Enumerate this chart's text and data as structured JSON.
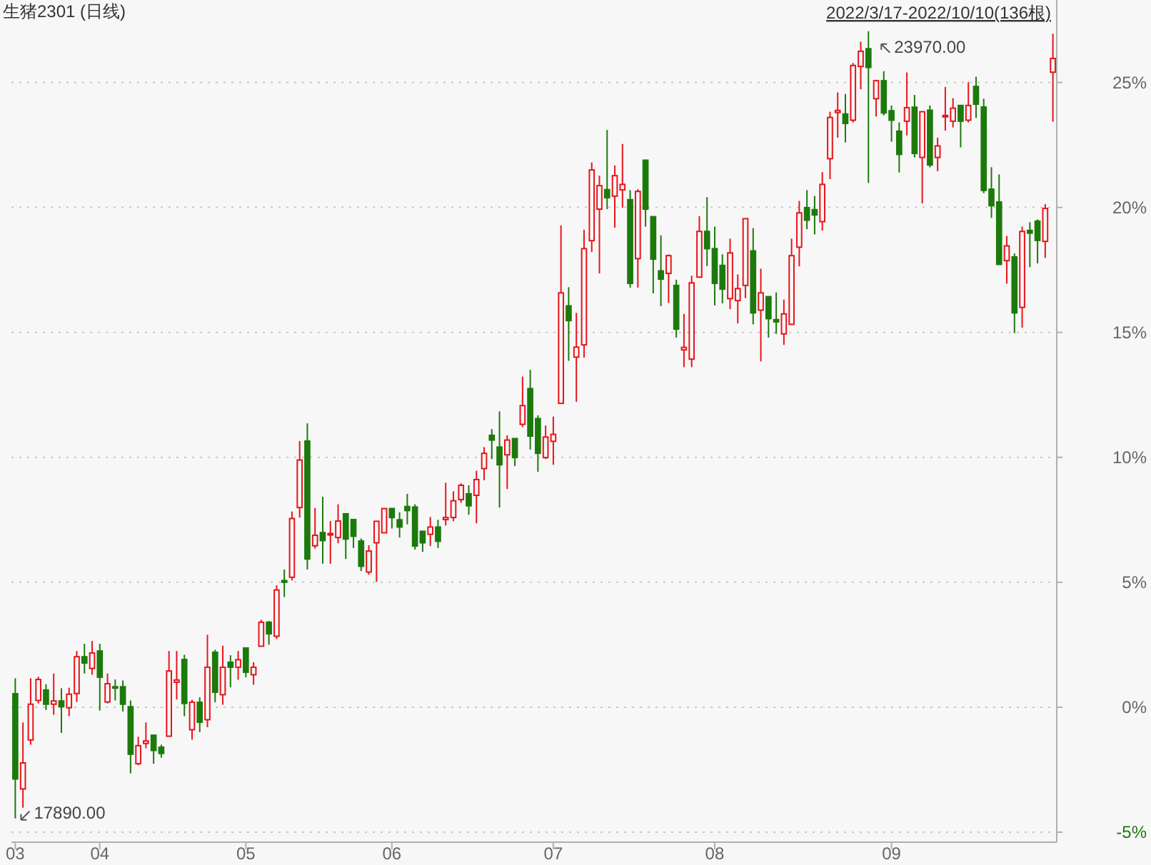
{
  "chart_data": {
    "type": "candlestick",
    "title": "生猪2301 (日线)",
    "subtitle": "2022/3/17-2022/10/10(136根)",
    "categories": [
      "03",
      null,
      null,
      null,
      null,
      null,
      null,
      null,
      null,
      null,
      null,
      "04",
      null,
      null,
      null,
      null,
      null,
      null,
      null,
      null,
      null,
      null,
      null,
      null,
      null,
      null,
      null,
      null,
      null,
      null,
      "05",
      null,
      null,
      null,
      null,
      null,
      null,
      null,
      null,
      null,
      null,
      null,
      null,
      null,
      null,
      null,
      null,
      null,
      null,
      "06",
      null,
      null,
      null,
      null,
      null,
      null,
      null,
      null,
      null,
      null,
      null,
      null,
      null,
      null,
      null,
      null,
      null,
      null,
      null,
      null,
      "07",
      null,
      null,
      null,
      null,
      null,
      null,
      null,
      null,
      null,
      null,
      null,
      null,
      null,
      null,
      null,
      null,
      null,
      null,
      null,
      null,
      "08",
      null,
      null,
      null,
      null,
      null,
      null,
      null,
      null,
      null,
      null,
      null,
      null,
      null,
      null,
      null,
      null,
      null,
      null,
      null,
      null,
      null,
      null,
      "09",
      null,
      null,
      null,
      null,
      null,
      null,
      null,
      null,
      null,
      null,
      null,
      null,
      null,
      null,
      null,
      null,
      null,
      null,
      null,
      null,
      null
    ],
    "ohlc": [
      [
        0.54,
        1.16,
        -4.45,
        -2.87
      ],
      [
        -3.27,
        -0.61,
        -4.02,
        -2.23
      ],
      [
        -1.31,
        1.16,
        -1.5,
        0.12
      ],
      [
        0.27,
        1.22,
        0.15,
        1.11
      ],
      [
        0.69,
        0.92,
        -0.11,
        0.12
      ],
      [
        0.12,
        1.35,
        -0.3,
        0.25
      ],
      [
        0.25,
        0.76,
        -1.03,
        0.02
      ],
      [
        -0.02,
        0.78,
        -0.36,
        0.52
      ],
      [
        0.55,
        2.25,
        0.21,
        2.02
      ],
      [
        2.02,
        2.54,
        1.35,
        1.77
      ],
      [
        1.55,
        2.65,
        1.3,
        2.17
      ],
      [
        2.25,
        2.54,
        -0.13,
        1.2
      ],
      [
        0.21,
        1.35,
        0.15,
        0.94
      ],
      [
        0.82,
        1.11,
        0.27,
        0.8
      ],
      [
        0.82,
        1.07,
        -0.17,
        0.12
      ],
      [
        0.02,
        0.27,
        -2.65,
        -1.88
      ],
      [
        -2.26,
        -1.18,
        -2.32,
        -1.54
      ],
      [
        -1.45,
        -0.61,
        -1.64,
        -1.35
      ],
      [
        -1.12,
        -1.12,
        -2.26,
        -1.73
      ],
      [
        -1.6,
        -1.5,
        -2.02,
        -1.85
      ],
      [
        -1.16,
        2.25,
        -1.16,
        1.45
      ],
      [
        1.0,
        2.25,
        0.31,
        1.09
      ],
      [
        1.91,
        2.1,
        -0.36,
        0.15
      ],
      [
        -0.9,
        0.3,
        -1.3,
        0.2
      ],
      [
        0.2,
        0.4,
        -1.0,
        -0.6
      ],
      [
        -0.5,
        2.9,
        -0.8,
        1.6
      ],
      [
        2.2,
        2.3,
        0.2,
        0.6
      ],
      [
        0.5,
        2.46,
        0.1,
        1.6
      ],
      [
        1.8,
        2.08,
        0.8,
        1.6
      ],
      [
        1.6,
        2.25,
        1.1,
        1.9
      ],
      [
        2.37,
        2.37,
        1.2,
        1.4
      ],
      [
        1.3,
        1.8,
        0.9,
        1.6
      ],
      [
        2.44,
        3.5,
        2.44,
        3.4
      ],
      [
        3.4,
        3.45,
        2.5,
        2.94
      ],
      [
        2.84,
        4.88,
        2.73,
        4.69
      ],
      [
        5.07,
        5.51,
        4.41,
        5.0
      ],
      [
        5.2,
        7.83,
        5.07,
        7.55
      ],
      [
        7.99,
        10.65,
        7.59,
        9.89
      ],
      [
        10.65,
        11.36,
        5.51,
        5.93
      ],
      [
        6.46,
        7.97,
        6.35,
        6.88
      ],
      [
        6.99,
        8.42,
        5.74,
        6.67
      ],
      [
        6.9,
        7.45,
        5.74,
        6.95
      ],
      [
        6.79,
        8.12,
        6.56,
        7.45
      ],
      [
        7.74,
        7.74,
        5.93,
        6.73
      ],
      [
        7.51,
        7.51,
        6.37,
        6.84
      ],
      [
        6.65,
        6.75,
        5.45,
        5.64
      ],
      [
        5.41,
        6.48,
        5.3,
        6.25
      ],
      [
        6.58,
        7.44,
        5.02,
        7.44
      ],
      [
        6.98,
        7.95,
        6.98,
        7.95
      ],
      [
        7.95,
        7.95,
        7.15,
        7.59
      ],
      [
        7.5,
        7.8,
        6.79,
        7.21
      ],
      [
        8.03,
        8.54,
        7.32,
        7.87
      ],
      [
        8.01,
        8.12,
        6.31,
        6.45
      ],
      [
        7.04,
        7.04,
        6.22,
        6.58
      ],
      [
        6.92,
        7.61,
        6.45,
        7.21
      ],
      [
        7.21,
        7.5,
        6.37,
        6.64
      ],
      [
        7.51,
        8.98,
        7.27,
        7.59
      ],
      [
        7.59,
        8.64,
        7.44,
        8.26
      ],
      [
        8.31,
        8.96,
        8.18,
        8.88
      ],
      [
        8.54,
        8.88,
        7.7,
        8.06
      ],
      [
        8.48,
        9.46,
        7.36,
        9.11
      ],
      [
        9.55,
        10.41,
        9.08,
        10.16
      ],
      [
        10.88,
        11.13,
        9.93,
        10.69
      ],
      [
        10.41,
        11.84,
        7.99,
        9.7
      ],
      [
        10.1,
        10.88,
        8.73,
        10.69
      ],
      [
        10.75,
        10.75,
        9.65,
        9.99
      ],
      [
        11.32,
        13.23,
        11.21,
        12.07
      ],
      [
        12.75,
        13.5,
        10.31,
        10.85
      ],
      [
        11.55,
        11.68,
        9.42,
        10.16
      ],
      [
        9.99,
        11.27,
        9.93,
        10.81
      ],
      [
        10.64,
        11.63,
        9.7,
        10.92
      ],
      [
        12.16,
        19.28,
        12.16,
        16.58
      ],
      [
        16.06,
        16.81,
        13.86,
        15.47
      ],
      [
        14.01,
        15.78,
        12.22,
        14.41
      ],
      [
        14.5,
        19.11,
        13.99,
        18.35
      ],
      [
        18.67,
        21.8,
        18.22,
        21.5
      ],
      [
        19.93,
        21.27,
        17.36,
        20.87
      ],
      [
        20.71,
        23.1,
        19.93,
        20.39
      ],
      [
        20.45,
        21.68,
        19.19,
        21.27
      ],
      [
        20.7,
        22.54,
        19.99,
        20.92
      ],
      [
        20.31,
        20.69,
        16.79,
        16.96
      ],
      [
        17.95,
        20.73,
        16.79,
        20.64
      ],
      [
        21.89,
        21.89,
        19.23,
        19.93
      ],
      [
        19.63,
        19.63,
        16.56,
        17.93
      ],
      [
        17.46,
        18.88,
        16.05,
        17.13
      ],
      [
        17.36,
        18.12,
        16.18,
        18.07
      ],
      [
        16.88,
        17.11,
        14.79,
        15.13
      ],
      [
        14.3,
        15.74,
        13.61,
        14.4
      ],
      [
        13.93,
        17.27,
        13.61,
        16.98
      ],
      [
        17.21,
        19.65,
        17.21,
        19.04
      ],
      [
        19.04,
        20.41,
        17.65,
        18.35
      ],
      [
        18.35,
        19.23,
        16.08,
        16.96
      ],
      [
        17.68,
        18.12,
        16.16,
        16.73
      ],
      [
        16.35,
        18.75,
        15.93,
        18.18
      ],
      [
        16.27,
        17.32,
        15.36,
        16.75
      ],
      [
        16.88,
        19.55,
        16.37,
        19.55
      ],
      [
        18.26,
        19.17,
        15.32,
        15.78
      ],
      [
        15.89,
        17.55,
        13.84,
        16.58
      ],
      [
        16.43,
        16.43,
        14.79,
        15.55
      ],
      [
        15.51,
        16.6,
        14.94,
        15.42
      ],
      [
        14.94,
        16.31,
        14.5,
        15.74
      ],
      [
        15.32,
        18.75,
        15.32,
        18.07
      ],
      [
        18.41,
        20.26,
        17.64,
        19.78
      ],
      [
        19.99,
        20.69,
        19.13,
        19.49
      ],
      [
        19.91,
        20.46,
        18.92,
        19.7
      ],
      [
        19.43,
        21.41,
        19.07,
        20.92
      ],
      [
        21.95,
        23.83,
        21.13,
        23.6
      ],
      [
        23.8,
        24.6,
        22.79,
        23.88
      ],
      [
        23.74,
        24.54,
        22.6,
        23.36
      ],
      [
        23.49,
        25.78,
        23.4,
        25.68
      ],
      [
        25.64,
        26.63,
        24.73,
        26.25
      ],
      [
        26.35,
        27.05,
        20.98,
        25.6
      ],
      [
        24.35,
        25.11,
        23.64,
        25.07
      ],
      [
        25.07,
        25.45,
        23.68,
        23.78
      ],
      [
        23.87,
        24.08,
        22.63,
        23.49
      ],
      [
        23.05,
        23.4,
        21.4,
        22.12
      ],
      [
        23.45,
        25.4,
        22.88,
        23.99
      ],
      [
        24.01,
        24.5,
        22.0,
        22.16
      ],
      [
        22.0,
        23.83,
        20.16,
        23.83
      ],
      [
        23.89,
        24.08,
        21.6,
        21.7
      ],
      [
        22.0,
        22.79,
        21.45,
        22.46
      ],
      [
        23.63,
        24.82,
        23.07,
        23.68
      ],
      [
        23.45,
        24.37,
        23.2,
        23.97
      ],
      [
        24.08,
        24.08,
        22.4,
        23.45
      ],
      [
        23.49,
        25.01,
        23.4,
        24.08
      ],
      [
        24.84,
        25.23,
        23.58,
        24.13
      ],
      [
        24.02,
        24.35,
        20.57,
        20.68
      ],
      [
        20.73,
        21.61,
        19.58,
        20.07
      ],
      [
        20.22,
        21.32,
        17.72,
        17.72
      ],
      [
        17.87,
        18.86,
        16.95,
        18.46
      ],
      [
        18.02,
        18.16,
        14.97,
        15.78
      ],
      [
        16.0,
        19.23,
        15.19,
        19.04
      ],
      [
        19.08,
        19.41,
        17.61,
        18.97
      ],
      [
        19.45,
        19.52,
        17.76,
        18.68
      ],
      [
        18.64,
        20.13,
        17.98,
        19.96
      ],
      [
        25.41,
        26.95,
        23.43,
        25.96
      ]
    ],
    "colors": [
      "#1c7a0c",
      "#e8141b",
      "#e8141b",
      "#e8141b",
      "#1c7a0c",
      "#e8141b",
      "#1c7a0c",
      "#e8141b",
      "#e8141b",
      "#1c7a0c",
      "#e8141b",
      "#1c7a0c",
      "#e8141b",
      "#1c7a0c",
      "#1c7a0c",
      "#1c7a0c",
      "#e8141b",
      "#e8141b",
      "#1c7a0c",
      "#1c7a0c",
      "#e8141b",
      "#e8141b",
      "#1c7a0c",
      "#e8141b",
      "#1c7a0c",
      "#e8141b",
      "#1c7a0c",
      "#e8141b",
      "#1c7a0c",
      "#e8141b",
      "#1c7a0c",
      "#e8141b",
      "#e8141b",
      "#1c7a0c",
      "#e8141b",
      "#1c7a0c",
      "#e8141b",
      "#e8141b",
      "#1c7a0c",
      "#e8141b",
      "#1c7a0c",
      "#e8141b",
      "#e8141b",
      "#1c7a0c",
      "#1c7a0c",
      "#1c7a0c",
      "#e8141b",
      "#e8141b",
      "#e8141b",
      "#1c7a0c",
      "#1c7a0c",
      "#1c7a0c",
      "#1c7a0c",
      "#1c7a0c",
      "#e8141b",
      "#1c7a0c",
      "#e8141b",
      "#e8141b",
      "#e8141b",
      "#1c7a0c",
      "#e8141b",
      "#e8141b",
      "#1c7a0c",
      "#1c7a0c",
      "#e8141b",
      "#1c7a0c",
      "#e8141b",
      "#1c7a0c",
      "#1c7a0c",
      "#e8141b",
      "#e8141b",
      "#e8141b",
      "#1c7a0c",
      "#e8141b",
      "#e8141b",
      "#e8141b",
      "#e8141b",
      "#1c7a0c",
      "#e8141b",
      "#e8141b",
      "#1c7a0c",
      "#e8141b",
      "#1c7a0c",
      "#1c7a0c",
      "#1c7a0c",
      "#e8141b",
      "#1c7a0c",
      "#e8141b",
      "#e8141b",
      "#e8141b",
      "#1c7a0c",
      "#1c7a0c",
      "#1c7a0c",
      "#e8141b",
      "#e8141b",
      "#e8141b",
      "#1c7a0c",
      "#e8141b",
      "#1c7a0c",
      "#1c7a0c",
      "#e8141b",
      "#e8141b",
      "#e8141b",
      "#1c7a0c",
      "#1c7a0c",
      "#e8141b",
      "#e8141b",
      "#e8141b",
      "#1c7a0c",
      "#e8141b",
      "#e8141b",
      "#1c7a0c",
      "#e8141b",
      "#1c7a0c",
      "#1c7a0c",
      "#1c7a0c",
      "#e8141b",
      "#1c7a0c",
      "#e8141b",
      "#1c7a0c",
      "#e8141b",
      "#e8141b",
      "#e8141b",
      "#1c7a0c",
      "#e8141b",
      "#1c7a0c",
      "#1c7a0c",
      "#1c7a0c",
      "#1c7a0c",
      "#e8141b",
      "#1c7a0c",
      "#e8141b",
      "#1c7a0c",
      "#1c7a0c",
      "#e8141b",
      "#e8141b"
    ],
    "ylim": [
      -5.4,
      28.3
    ],
    "yticks": [
      {
        "value": -5,
        "label": "-5%"
      },
      {
        "value": 0,
        "label": "0%"
      },
      {
        "value": 5,
        "label": "5%"
      },
      {
        "value": 10,
        "label": "10%"
      },
      {
        "value": 15,
        "label": "15%"
      },
      {
        "value": 20,
        "label": "20%"
      },
      {
        "value": 25,
        "label": "25%"
      }
    ],
    "grid": "y",
    "annotations": [
      "23970.00",
      "17890.00"
    ]
  }
}
